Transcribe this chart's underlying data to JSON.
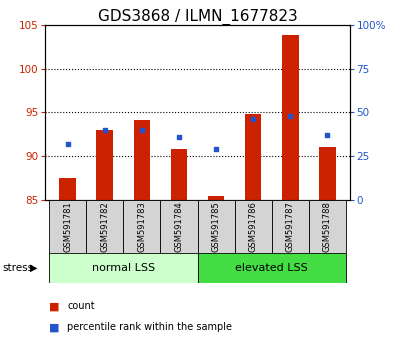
{
  "title": "GDS3868 / ILMN_1677823",
  "categories": [
    "GSM591781",
    "GSM591782",
    "GSM591783",
    "GSM591784",
    "GSM591785",
    "GSM591786",
    "GSM591787",
    "GSM591788"
  ],
  "bar_values": [
    87.5,
    93.0,
    94.1,
    90.8,
    85.5,
    94.8,
    103.8,
    91.0
  ],
  "percentile_values": [
    32,
    40,
    40,
    36,
    29,
    46,
    48,
    37
  ],
  "ylim_left": [
    85,
    105
  ],
  "ylim_right": [
    0,
    100
  ],
  "yticks_left": [
    85,
    90,
    95,
    100,
    105
  ],
  "yticks_right": [
    0,
    25,
    50,
    75,
    100
  ],
  "bar_color": "#cc2200",
  "dot_color": "#2255cc",
  "bar_bottom": 85,
  "group1_label": "normal LSS",
  "group2_label": "elevated LSS",
  "group1_color": "#ccffcc",
  "group2_color": "#44dd44",
  "stress_label": "stress",
  "legend_count": "count",
  "legend_percentile": "percentile rank within the sample",
  "title_fontsize": 11,
  "axis_label_color_left": "#cc2200",
  "axis_label_color_right": "#2255cc",
  "grid_yticks": [
    90,
    95,
    100
  ],
  "bar_width": 0.45,
  "label_box_color": "#d4d4d4"
}
